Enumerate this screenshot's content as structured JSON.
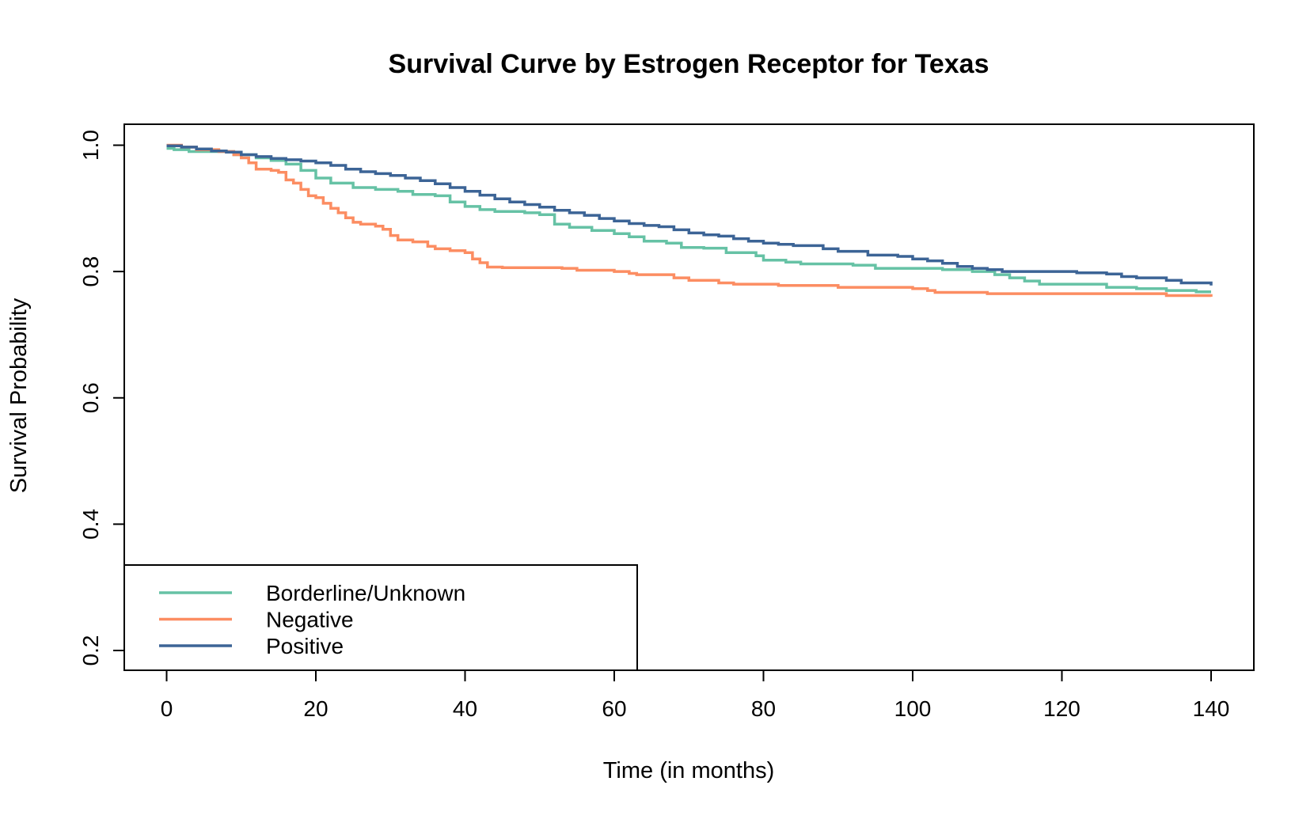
{
  "chart_data": {
    "type": "line",
    "step": true,
    "title": "Survival Curve by Estrogen Receptor for Texas",
    "xlabel": "Time (in months)",
    "ylabel": "Survival Probability",
    "xlim": [
      0,
      140
    ],
    "ylim": [
      0.2,
      1.0
    ],
    "xticks": [
      0,
      20,
      40,
      60,
      80,
      100,
      120,
      140
    ],
    "xtick_labels": [
      "0",
      "20",
      "40",
      "60",
      "80",
      "100",
      "120",
      "140"
    ],
    "yticks": [
      0.2,
      0.4,
      0.6,
      0.8,
      1.0
    ],
    "ytick_labels": [
      "0.2",
      "0.4",
      "0.6",
      "0.8",
      "1.0"
    ],
    "grid": false,
    "legend_position": "bottom-left",
    "series": [
      {
        "name": "Borderline/Unknown",
        "color": "#66C2A5",
        "points": [
          [
            0,
            0.995
          ],
          [
            1,
            0.993
          ],
          [
            3,
            0.99
          ],
          [
            6,
            0.99
          ],
          [
            9,
            0.985
          ],
          [
            12,
            0.98
          ],
          [
            14,
            0.976
          ],
          [
            16,
            0.97
          ],
          [
            18,
            0.96
          ],
          [
            20,
            0.948
          ],
          [
            22,
            0.94
          ],
          [
            25,
            0.933
          ],
          [
            28,
            0.93
          ],
          [
            31,
            0.927
          ],
          [
            33,
            0.922
          ],
          [
            36,
            0.92
          ],
          [
            38,
            0.91
          ],
          [
            40,
            0.903
          ],
          [
            42,
            0.898
          ],
          [
            44,
            0.895
          ],
          [
            48,
            0.893
          ],
          [
            50,
            0.89
          ],
          [
            52,
            0.875
          ],
          [
            54,
            0.87
          ],
          [
            57,
            0.865
          ],
          [
            60,
            0.86
          ],
          [
            62,
            0.855
          ],
          [
            64,
            0.848
          ],
          [
            67,
            0.845
          ],
          [
            69,
            0.838
          ],
          [
            72,
            0.837
          ],
          [
            75,
            0.83
          ],
          [
            79,
            0.825
          ],
          [
            80,
            0.818
          ],
          [
            83,
            0.815
          ],
          [
            85,
            0.812
          ],
          [
            92,
            0.81
          ],
          [
            95,
            0.805
          ],
          [
            100,
            0.805
          ],
          [
            104,
            0.803
          ],
          [
            108,
            0.8
          ],
          [
            111,
            0.795
          ],
          [
            113,
            0.79
          ],
          [
            115,
            0.785
          ],
          [
            117,
            0.78
          ],
          [
            124,
            0.78
          ],
          [
            126,
            0.775
          ],
          [
            130,
            0.773
          ],
          [
            134,
            0.77
          ],
          [
            138,
            0.768
          ],
          [
            140,
            0.768
          ]
        ]
      },
      {
        "name": "Negative",
        "color": "#FC8D62",
        "points": [
          [
            0,
            1.0
          ],
          [
            2,
            0.997
          ],
          [
            4,
            0.993
          ],
          [
            7,
            0.99
          ],
          [
            9,
            0.985
          ],
          [
            10,
            0.98
          ],
          [
            11,
            0.972
          ],
          [
            12,
            0.962
          ],
          [
            14,
            0.96
          ],
          [
            15,
            0.957
          ],
          [
            16,
            0.945
          ],
          [
            17,
            0.94
          ],
          [
            18,
            0.93
          ],
          [
            19,
            0.92
          ],
          [
            20,
            0.917
          ],
          [
            21,
            0.908
          ],
          [
            22,
            0.9
          ],
          [
            23,
            0.893
          ],
          [
            24,
            0.885
          ],
          [
            25,
            0.878
          ],
          [
            26,
            0.875
          ],
          [
            28,
            0.872
          ],
          [
            29,
            0.867
          ],
          [
            30,
            0.857
          ],
          [
            31,
            0.85
          ],
          [
            33,
            0.847
          ],
          [
            35,
            0.84
          ],
          [
            36,
            0.836
          ],
          [
            38,
            0.833
          ],
          [
            40,
            0.83
          ],
          [
            41,
            0.82
          ],
          [
            42,
            0.814
          ],
          [
            43,
            0.807
          ],
          [
            45,
            0.806
          ],
          [
            53,
            0.805
          ],
          [
            55,
            0.802
          ],
          [
            60,
            0.8
          ],
          [
            62,
            0.797
          ],
          [
            63,
            0.795
          ],
          [
            68,
            0.79
          ],
          [
            70,
            0.786
          ],
          [
            74,
            0.782
          ],
          [
            76,
            0.78
          ],
          [
            80,
            0.78
          ],
          [
            82,
            0.778
          ],
          [
            90,
            0.775
          ],
          [
            92,
            0.775
          ],
          [
            100,
            0.773
          ],
          [
            102,
            0.77
          ],
          [
            103,
            0.767
          ],
          [
            110,
            0.765
          ],
          [
            115,
            0.765
          ],
          [
            130,
            0.765
          ],
          [
            134,
            0.762
          ],
          [
            140,
            0.76
          ]
        ]
      },
      {
        "name": "Positive",
        "color": "#3C6496",
        "points": [
          [
            0,
            0.999
          ],
          [
            2,
            0.997
          ],
          [
            4,
            0.994
          ],
          [
            6,
            0.991
          ],
          [
            8,
            0.989
          ],
          [
            10,
            0.985
          ],
          [
            12,
            0.982
          ],
          [
            14,
            0.979
          ],
          [
            16,
            0.977
          ],
          [
            18,
            0.975
          ],
          [
            20,
            0.972
          ],
          [
            22,
            0.968
          ],
          [
            24,
            0.962
          ],
          [
            26,
            0.958
          ],
          [
            28,
            0.955
          ],
          [
            30,
            0.952
          ],
          [
            32,
            0.948
          ],
          [
            34,
            0.944
          ],
          [
            36,
            0.939
          ],
          [
            38,
            0.933
          ],
          [
            40,
            0.927
          ],
          [
            42,
            0.921
          ],
          [
            44,
            0.915
          ],
          [
            46,
            0.91
          ],
          [
            48,
            0.906
          ],
          [
            50,
            0.902
          ],
          [
            52,
            0.897
          ],
          [
            54,
            0.893
          ],
          [
            56,
            0.889
          ],
          [
            58,
            0.884
          ],
          [
            60,
            0.88
          ],
          [
            62,
            0.876
          ],
          [
            64,
            0.873
          ],
          [
            66,
            0.871
          ],
          [
            68,
            0.866
          ],
          [
            70,
            0.861
          ],
          [
            72,
            0.858
          ],
          [
            74,
            0.856
          ],
          [
            76,
            0.852
          ],
          [
            78,
            0.848
          ],
          [
            80,
            0.845
          ],
          [
            82,
            0.843
          ],
          [
            84,
            0.841
          ],
          [
            88,
            0.836
          ],
          [
            90,
            0.832
          ],
          [
            94,
            0.826
          ],
          [
            98,
            0.824
          ],
          [
            100,
            0.82
          ],
          [
            102,
            0.817
          ],
          [
            104,
            0.813
          ],
          [
            106,
            0.808
          ],
          [
            108,
            0.805
          ],
          [
            110,
            0.803
          ],
          [
            112,
            0.8
          ],
          [
            118,
            0.8
          ],
          [
            122,
            0.798
          ],
          [
            126,
            0.796
          ],
          [
            128,
            0.792
          ],
          [
            130,
            0.79
          ],
          [
            134,
            0.786
          ],
          [
            136,
            0.782
          ],
          [
            140,
            0.778
          ]
        ]
      }
    ]
  }
}
